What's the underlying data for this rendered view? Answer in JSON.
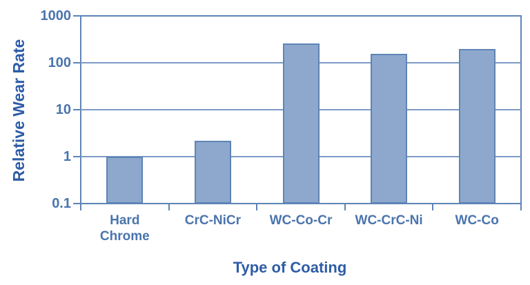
{
  "chart_data": {
    "type": "bar",
    "xlabel": "Type of Coating",
    "ylabel": "Relative Wear Rate",
    "categories": [
      "Hard Chrome",
      "CrC-NiCr",
      "WC-Co-Cr",
      "WC-CrC-Ni",
      "WC-Co"
    ],
    "values": [
      1.0,
      2.2,
      260,
      155,
      195
    ],
    "y_scale": "log",
    "ylim": [
      0.1,
      1000
    ],
    "y_tick_labels": [
      "1000",
      "100",
      "10",
      "1",
      "0.1"
    ],
    "grid": true,
    "legend_position": "none",
    "colors": {
      "bar_fill": "#8ea8cd",
      "bar_border": "#5e84b5",
      "gridline": "#7c99c5",
      "axis": "#5d84b6",
      "tick_label": "#4a74ad",
      "axis_title": "#2e5ca6"
    }
  }
}
